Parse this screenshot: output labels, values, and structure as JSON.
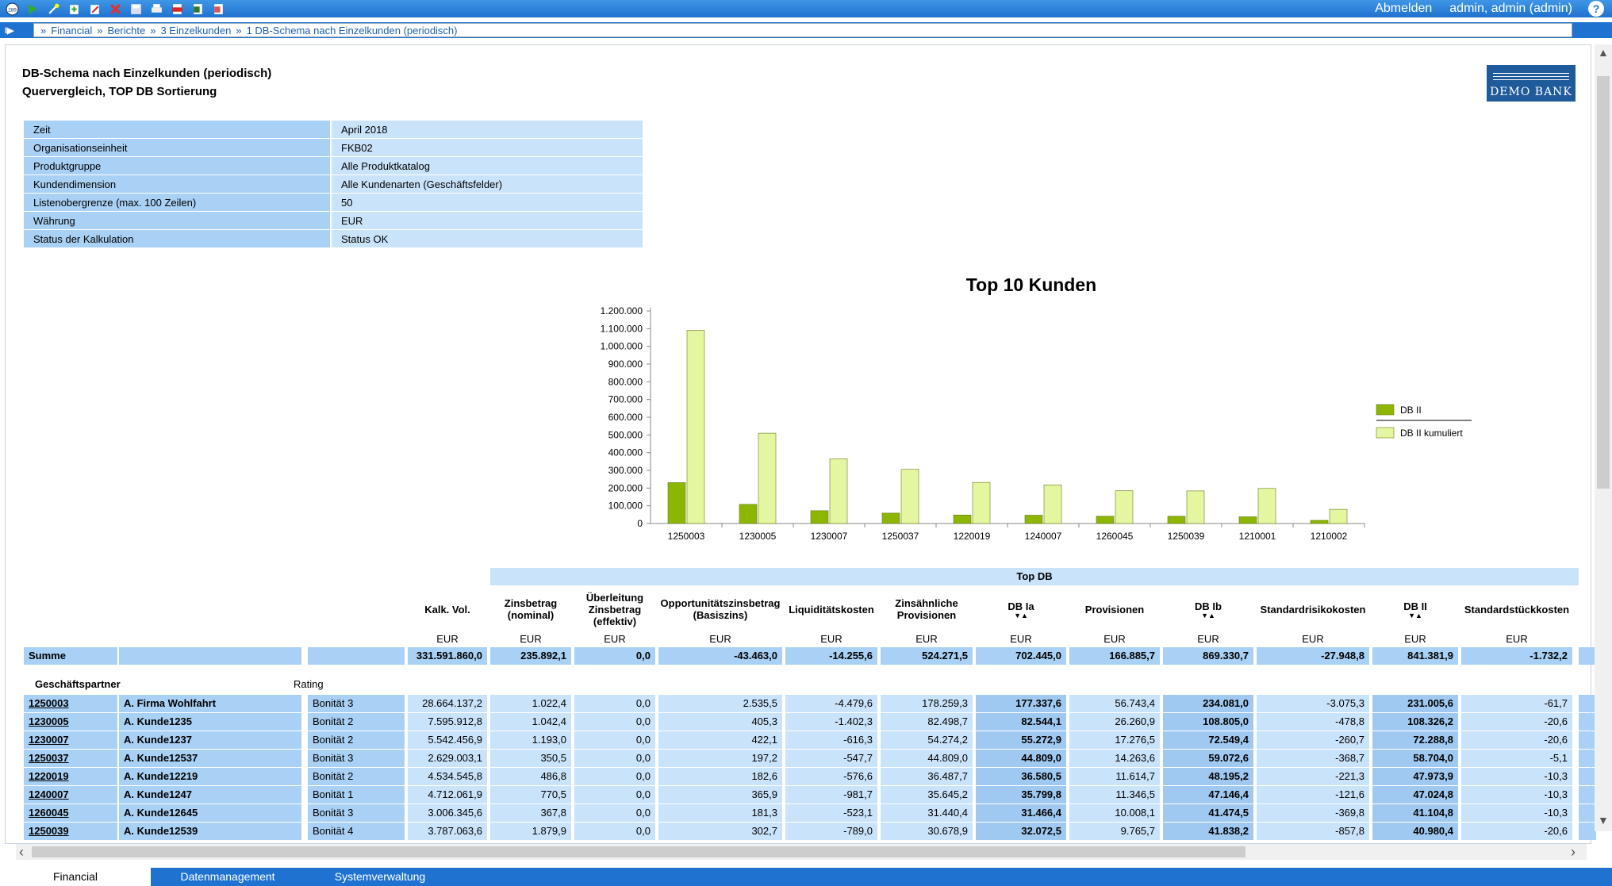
{
  "toolbar": {
    "icons": [
      "home-icon",
      "green-arrow-icon",
      "magic-wand-icon",
      "import-icon",
      "edit-icon",
      "delete-icon",
      "save-icon",
      "print-icon",
      "pdf-icon",
      "excel-icon",
      "export-icon"
    ],
    "logout": "Abmelden",
    "user": "admin, admin (admin)",
    "help": "?"
  },
  "breadcrumb": [
    "Financial",
    "Berichte",
    "3 Einzelkunden",
    "1 DB-Schema nach Einzelkunden (periodisch)"
  ],
  "report": {
    "title": "DB-Schema nach Einzelkunden (periodisch)",
    "subtitle": "Quervergleich, TOP DB Sortierung",
    "logo": "DEMO BANK"
  },
  "params": [
    {
      "key": "Zeit",
      "value": "April 2018"
    },
    {
      "key": "Organisationseinheit",
      "value": "FKB02"
    },
    {
      "key": "Produktgruppe",
      "value": "Alle Produktkatalog"
    },
    {
      "key": "Kundendimension",
      "value": "Alle Kundenarten (Geschäftsfelder)"
    },
    {
      "key": "Listenobergrenze (max. 100 Zeilen)",
      "value": "50"
    },
    {
      "key": "Währung",
      "value": "EUR"
    },
    {
      "key": "Status der Kalkulation",
      "value": "Status OK"
    }
  ],
  "chart_data": {
    "type": "bar",
    "title": "Top 10 Kunden",
    "categories": [
      "1250003",
      "1230005",
      "1230007",
      "1250037",
      "1220019",
      "1240007",
      "1260045",
      "1250039",
      "1210001",
      "1210002"
    ],
    "series": [
      {
        "name": "DB II",
        "color": "#8db600",
        "values": [
          231006,
          108326,
          72289,
          58704,
          47974,
          47025,
          41105,
          40980,
          38000,
          18000
        ]
      },
      {
        "name": "DB II kumuliert",
        "color": "#e4f7a0",
        "values": [
          1090000,
          510000,
          365000,
          306000,
          232000,
          218000,
          185000,
          184000,
          198000,
          80000
        ]
      }
    ],
    "ylim": [
      0,
      1200000
    ],
    "yticks": [
      "0",
      "100.000",
      "200.000",
      "300.000",
      "400.000",
      "500.000",
      "600.000",
      "700.000",
      "800.000",
      "900.000",
      "1.000.000",
      "1.100.000",
      "1.200.000"
    ],
    "legend": "right",
    "grid": false
  },
  "table": {
    "group_header": "Top DB",
    "columns": [
      {
        "label": "Kalk. Vol.",
        "unit": ""
      },
      {
        "label": "Zinsbetrag (nominal)",
        "unit": "EUR"
      },
      {
        "label": "Überleitung Zinsbetrag (effektiv)",
        "unit": "EUR"
      },
      {
        "label": "Opportunitätszinsbetrag (Basiszins)",
        "unit": "EUR"
      },
      {
        "label": "Liquiditätskosten",
        "unit": "EUR"
      },
      {
        "label": "Zinsähnliche Provisionen",
        "unit": "EUR"
      },
      {
        "label": "DB Ia",
        "unit": "EUR"
      },
      {
        "label": "Provisionen",
        "unit": "EUR"
      },
      {
        "label": "DB Ib",
        "unit": "EUR"
      },
      {
        "label": "Standardrisikokosten",
        "unit": "EUR"
      },
      {
        "label": "DB II",
        "unit": "EUR"
      },
      {
        "label": "Standardstückkosten",
        "unit": "EUR"
      }
    ],
    "kalk_unit": "EUR",
    "summe_label": "Summe",
    "summe": [
      "331.591.860,0",
      "235.892,1",
      "0,0",
      "-43.463,0",
      "-14.255,6",
      "524.271,5",
      "702.445,0",
      "166.885,7",
      "869.330,7",
      "-27.948,8",
      "841.381,9",
      "-1.732,2"
    ],
    "partner_header": "Geschäftspartner",
    "rating_header": "Rating",
    "rows": [
      {
        "id": "1250003",
        "name": "A. Firma Wohlfahrt",
        "rating": "Bonität 3",
        "values": [
          "28.664.137,2",
          "1.022,4",
          "0,0",
          "2.535,5",
          "-4.479,6",
          "178.259,3",
          "177.337,6",
          "56.743,4",
          "234.081,0",
          "-3.075,3",
          "231.005,6",
          "-61,7"
        ]
      },
      {
        "id": "1230005",
        "name": "A. Kunde1235",
        "rating": "Bonität 2",
        "values": [
          "7.595.912,8",
          "1.042,4",
          "0,0",
          "405,3",
          "-1.402,3",
          "82.498,7",
          "82.544,1",
          "26.260,9",
          "108.805,0",
          "-478,8",
          "108.326,2",
          "-20,6"
        ]
      },
      {
        "id": "1230007",
        "name": "A. Kunde1237",
        "rating": "Bonität 2",
        "values": [
          "5.542.456,9",
          "1.193,0",
          "0,0",
          "422,1",
          "-616,3",
          "54.274,2",
          "55.272,9",
          "17.276,5",
          "72.549,4",
          "-260,7",
          "72.288,8",
          "-20,6"
        ]
      },
      {
        "id": "1250037",
        "name": "A. Kunde12537",
        "rating": "Bonität 3",
        "values": [
          "2.629.003,1",
          "350,5",
          "0,0",
          "197,2",
          "-547,7",
          "44.809,0",
          "44.809,0",
          "14.263,6",
          "59.072,6",
          "-368,7",
          "58.704,0",
          "-5,1"
        ]
      },
      {
        "id": "1220019",
        "name": "A. Kunde12219",
        "rating": "Bonität 2",
        "values": [
          "4.534.545,8",
          "486,8",
          "0,0",
          "182,6",
          "-576,6",
          "36.487,7",
          "36.580,5",
          "11.614,7",
          "48.195,2",
          "-221,3",
          "47.973,9",
          "-10,3"
        ]
      },
      {
        "id": "1240007",
        "name": "A. Kunde1247",
        "rating": "Bonität 1",
        "values": [
          "4.712.061,9",
          "770,5",
          "0,0",
          "365,9",
          "-981,7",
          "35.645,2",
          "35.799,8",
          "11.346,5",
          "47.146,4",
          "-121,6",
          "47.024,8",
          "-10,3"
        ]
      },
      {
        "id": "1260045",
        "name": "A. Kunde12645",
        "rating": "Bonität 3",
        "values": [
          "3.006.345,6",
          "367,8",
          "0,0",
          "181,3",
          "-523,1",
          "31.440,4",
          "31.466,4",
          "10.008,1",
          "41.474,5",
          "-369,8",
          "41.104,8",
          "-10,3"
        ]
      },
      {
        "id": "1250039",
        "name": "A. Kunde12539",
        "rating": "Bonität 4",
        "values": [
          "3.787.063,6",
          "1.879,9",
          "0,0",
          "302,7",
          "-789,0",
          "30.678,9",
          "32.072,5",
          "9.765,7",
          "41.838,2",
          "-857,8",
          "40.980,4",
          "-20,6"
        ]
      }
    ]
  },
  "tabs": [
    "Financial",
    "Datenmanagement",
    "Systemverwaltung"
  ]
}
